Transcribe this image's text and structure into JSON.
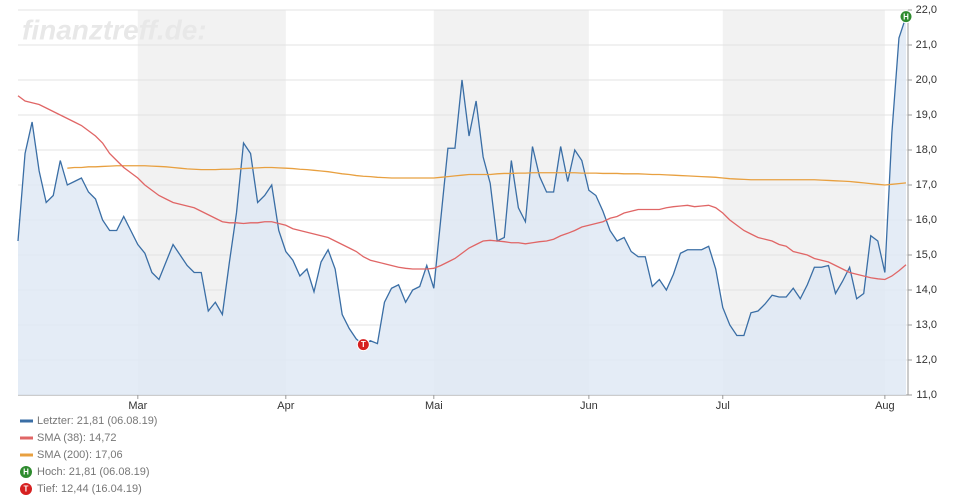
{
  "chart_data": {
    "type": "line",
    "watermark": "finanztreff.de:",
    "categories": [
      null,
      null,
      null,
      null,
      null,
      null,
      null,
      null,
      null,
      null,
      null,
      null,
      null,
      null,
      null,
      null,
      null,
      "Mar",
      null,
      null,
      null,
      null,
      null,
      null,
      null,
      null,
      null,
      null,
      null,
      null,
      null,
      null,
      null,
      null,
      null,
      null,
      null,
      null,
      "Apr",
      null,
      null,
      null,
      null,
      null,
      null,
      null,
      null,
      null,
      null,
      null,
      null,
      null,
      null,
      null,
      null,
      null,
      null,
      null,
      null,
      "Mai",
      null,
      null,
      null,
      null,
      null,
      null,
      null,
      null,
      null,
      null,
      null,
      null,
      null,
      null,
      null,
      null,
      null,
      null,
      null,
      null,
      null,
      "Jun",
      null,
      null,
      null,
      null,
      null,
      null,
      null,
      null,
      null,
      null,
      null,
      null,
      null,
      null,
      null,
      null,
      null,
      null,
      "Jul",
      null,
      null,
      null,
      null,
      null,
      null,
      null,
      null,
      null,
      null,
      null,
      null,
      null,
      null,
      null,
      null,
      null,
      null,
      null,
      null,
      null,
      null,
      "Aug",
      null,
      null,
      null
    ],
    "series": [
      {
        "name": "Letzter: 21,81 (06.08.19)",
        "color": "#3a6ea5",
        "fill": "#dfe9f4",
        "values": [
          15.4,
          17.9,
          18.8,
          17.4,
          16.5,
          16.7,
          17.7,
          17.0,
          17.1,
          17.2,
          16.8,
          16.6,
          16.0,
          15.7,
          15.7,
          16.1,
          15.7,
          15.3,
          15.05,
          14.5,
          14.3,
          14.8,
          15.3,
          15.0,
          14.7,
          14.5,
          14.5,
          13.4,
          13.65,
          13.3,
          14.8,
          16.2,
          18.2,
          17.9,
          16.5,
          16.7,
          17.0,
          15.7,
          15.1,
          14.85,
          14.4,
          14.6,
          13.95,
          14.8,
          15.15,
          14.6,
          13.3,
          12.9,
          12.6,
          12.44,
          12.55,
          12.47,
          13.65,
          14.05,
          14.15,
          13.65,
          14.0,
          14.1,
          14.7,
          14.05,
          16.05,
          18.05,
          18.05,
          20.0,
          18.4,
          19.4,
          17.8,
          17.05,
          15.4,
          15.5,
          17.7,
          16.35,
          15.95,
          18.1,
          17.25,
          16.8,
          16.8,
          18.1,
          17.1,
          18.0,
          17.7,
          16.85,
          16.7,
          16.25,
          15.7,
          15.4,
          15.5,
          15.1,
          14.95,
          14.95,
          14.1,
          14.3,
          14.0,
          14.45,
          15.05,
          15.15,
          15.15,
          15.15,
          15.25,
          14.6,
          13.5,
          13.0,
          12.7,
          12.7,
          13.35,
          13.4,
          13.6,
          13.85,
          13.8,
          13.8,
          14.05,
          13.75,
          14.15,
          14.65,
          14.65,
          14.7,
          13.9,
          14.25,
          14.65,
          13.75,
          13.9,
          15.55,
          15.4,
          14.5,
          18.5,
          21.2,
          21.81
        ]
      },
      {
        "name": "SMA (38): 14,72",
        "color": "#e06666",
        "values": [
          19.55,
          19.4,
          19.35,
          19.3,
          19.2,
          19.1,
          19.0,
          18.9,
          18.8,
          18.7,
          18.55,
          18.4,
          18.2,
          17.9,
          17.7,
          17.5,
          17.35,
          17.2,
          17.0,
          16.85,
          16.7,
          16.6,
          16.5,
          16.45,
          16.4,
          16.35,
          16.25,
          16.15,
          16.05,
          15.95,
          15.92,
          15.92,
          15.9,
          15.92,
          15.92,
          15.95,
          15.95,
          15.9,
          15.85,
          15.75,
          15.7,
          15.65,
          15.6,
          15.55,
          15.5,
          15.4,
          15.3,
          15.2,
          15.1,
          14.95,
          14.85,
          14.8,
          14.75,
          14.7,
          14.65,
          14.62,
          14.6,
          14.6,
          14.6,
          14.62,
          14.7,
          14.8,
          14.9,
          15.05,
          15.2,
          15.3,
          15.4,
          15.42,
          15.4,
          15.38,
          15.35,
          15.35,
          15.32,
          15.35,
          15.38,
          15.4,
          15.45,
          15.55,
          15.62,
          15.7,
          15.8,
          15.85,
          15.9,
          15.95,
          16.05,
          16.1,
          16.2,
          16.25,
          16.3,
          16.3,
          16.3,
          16.3,
          16.35,
          16.38,
          16.4,
          16.42,
          16.38,
          16.4,
          16.42,
          16.35,
          16.2,
          16.0,
          15.85,
          15.7,
          15.6,
          15.5,
          15.45,
          15.4,
          15.3,
          15.25,
          15.1,
          15.05,
          15.0,
          14.9,
          14.85,
          14.8,
          14.7,
          14.6,
          14.5,
          14.45,
          14.4,
          14.35,
          14.32,
          14.3,
          14.4,
          14.55,
          14.72
        ]
      },
      {
        "name": "SMA (200): 17,06",
        "color": "#e8a040",
        "values": [
          null,
          null,
          null,
          null,
          null,
          null,
          null,
          17.48,
          17.5,
          17.5,
          17.52,
          17.52,
          17.53,
          17.54,
          17.55,
          17.55,
          17.55,
          17.55,
          17.55,
          17.54,
          17.53,
          17.52,
          17.5,
          17.48,
          17.46,
          17.45,
          17.44,
          17.44,
          17.44,
          17.45,
          17.45,
          17.46,
          17.47,
          17.48,
          17.49,
          17.5,
          17.5,
          17.49,
          17.48,
          17.47,
          17.45,
          17.44,
          17.42,
          17.4,
          17.38,
          17.35,
          17.32,
          17.3,
          17.27,
          17.25,
          17.24,
          17.22,
          17.21,
          17.2,
          17.2,
          17.2,
          17.2,
          17.2,
          17.2,
          17.2,
          17.22,
          17.24,
          17.26,
          17.28,
          17.3,
          17.3,
          17.3,
          17.3,
          17.32,
          17.33,
          17.33,
          17.34,
          17.34,
          17.35,
          17.35,
          17.35,
          17.35,
          17.35,
          17.35,
          17.35,
          17.34,
          17.34,
          17.34,
          17.33,
          17.33,
          17.33,
          17.32,
          17.32,
          17.32,
          17.31,
          17.3,
          17.3,
          17.29,
          17.28,
          17.27,
          17.26,
          17.25,
          17.24,
          17.23,
          17.22,
          17.2,
          17.18,
          17.17,
          17.16,
          17.15,
          17.15,
          17.15,
          17.15,
          17.15,
          17.15,
          17.15,
          17.15,
          17.15,
          17.15,
          17.14,
          17.13,
          17.12,
          17.11,
          17.1,
          17.08,
          17.06,
          17.04,
          17.02,
          17.0,
          17.02,
          17.04,
          17.06
        ]
      }
    ],
    "markers": [
      {
        "label": "H",
        "name": "Hoch: 21,81 (06.08.19)",
        "at": "max",
        "color": "#2e8b2e"
      },
      {
        "label": "T",
        "name": "Tief: 12,44 (16.04.19)",
        "at": "min",
        "color": "#d62020"
      }
    ],
    "ylim": [
      11,
      22
    ],
    "yticks": [
      {
        "value": 11,
        "label": "11,0"
      },
      {
        "value": 12,
        "label": "12,0"
      },
      {
        "value": 13,
        "label": "13,0"
      },
      {
        "value": 14,
        "label": "14,0"
      },
      {
        "value": 15,
        "label": "15,0"
      },
      {
        "value": 16,
        "label": "16,0"
      },
      {
        "value": 17,
        "label": "17,0"
      },
      {
        "value": 18,
        "label": "18,0"
      },
      {
        "value": 19,
        "label": "19,0"
      },
      {
        "value": 20,
        "label": "20,0"
      },
      {
        "value": 21,
        "label": "21,0"
      },
      {
        "value": 22,
        "label": "22,0"
      }
    ],
    "grid": true,
    "y_axis_side": "right"
  }
}
